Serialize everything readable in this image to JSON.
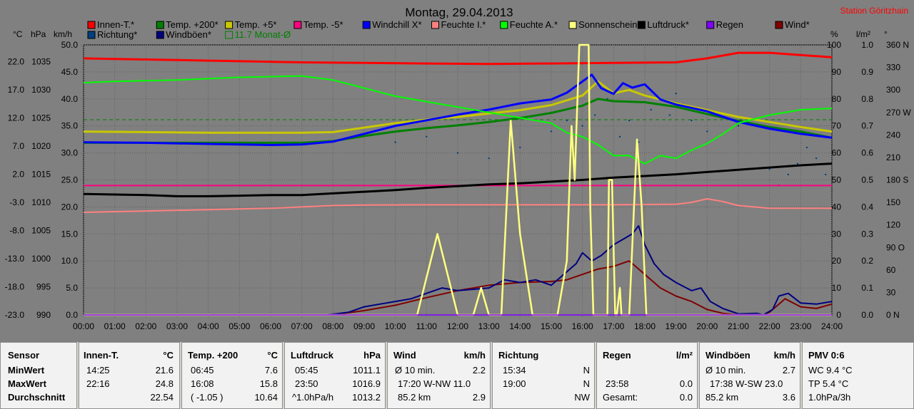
{
  "chart_data": {
    "type": "line",
    "title": "Montag, 29.04.2013",
    "station": "Station Göritzhain",
    "axis_units": {
      "temp": "°C",
      "pressure": "hPa",
      "speed": "km/h",
      "percent": "%",
      "rain": "l/m²",
      "direction": "°"
    },
    "x_ticks": [
      "00:00",
      "01:00",
      "02:00",
      "03:00",
      "04:00",
      "05:00",
      "06:00",
      "07:00",
      "08:00",
      "09:00",
      "10:00",
      "11:00",
      "12:00",
      "13:00",
      "14:00",
      "15:00",
      "16:00",
      "17:00",
      "18:00",
      "19:00",
      "20:00",
      "21:00",
      "22:00",
      "23:00",
      "24:00"
    ],
    "temp_ticks": [
      "22.0",
      "17.0",
      "12.0",
      "7.0",
      "2.0",
      "-3.0",
      "-8.0",
      "-13.0",
      "-18.0",
      "-23.0"
    ],
    "temp_range": [
      -23,
      25
    ],
    "pressure_ticks": [
      "1035",
      "1030",
      "1025",
      "1020",
      "1015",
      "1010",
      "1005",
      "1000",
      "995",
      "990"
    ],
    "speed_ticks": [
      "50.0",
      "45.0",
      "40.0",
      "35.0",
      "30.0",
      "25.0",
      "20.0",
      "15.0",
      "10.0",
      "5.0",
      "0.0"
    ],
    "percent_ticks": [
      "100",
      "90",
      "80",
      "70",
      "60",
      "50",
      "40",
      "30",
      "20",
      "10",
      "0"
    ],
    "rain_ticks": [
      "1.0",
      "0.9",
      "0.8",
      "0.7",
      "0.6",
      "0.5",
      "0.4",
      "0.3",
      "0.2",
      "0.1",
      "0.0"
    ],
    "direction_ticks": [
      "360 N",
      "330",
      "300",
      "270 W",
      "240",
      "210",
      "180 S",
      "150",
      "120",
      "90 O",
      "60",
      "30",
      "0 N"
    ],
    "legend": [
      {
        "name": "Innen-T.*",
        "color": "#ff0000"
      },
      {
        "name": "Temp. +200*",
        "color": "#008000"
      },
      {
        "name": "Temp. +5*",
        "color": "#c8c800"
      },
      {
        "name": "Temp. -5*",
        "color": "#ff0080"
      },
      {
        "name": "Windchill X*",
        "color": "#0000ff"
      },
      {
        "name": "Feuchte I.*",
        "color": "#ff8080"
      },
      {
        "name": "Feuchte A.*",
        "color": "#00ff00"
      },
      {
        "name": "Sonnenschein",
        "color": "#ffff80"
      },
      {
        "name": "Luftdruck*",
        "color": "#000000"
      },
      {
        "name": "Regen",
        "color": "#8000ff"
      },
      {
        "name": "Wind*",
        "color": "#800000"
      },
      {
        "name": "Richtung*",
        "color": "#004080"
      },
      {
        "name": "Windböen*",
        "color": "#000080"
      },
      {
        "name": "11.7 Monat-Ø",
        "color": "#008000"
      }
    ],
    "month_avg_temp": 11.7,
    "series": [
      {
        "name": "Innen-T.*",
        "axis": "temp",
        "color": "#ff0000",
        "x": [
          0,
          1,
          3,
          5,
          7,
          9,
          11,
          13,
          15,
          17,
          19,
          20,
          21,
          22,
          23,
          24
        ],
        "y": [
          22.6,
          22.5,
          22.3,
          22.1,
          21.9,
          21.8,
          21.7,
          21.6,
          21.7,
          21.8,
          21.9,
          22.6,
          23.6,
          23.6,
          23.2,
          22.8
        ]
      },
      {
        "name": "Temp. +200*",
        "axis": "temp",
        "color": "#008000",
        "x": [
          0,
          2,
          4,
          6,
          7,
          8,
          9,
          10,
          11,
          12,
          13,
          14,
          15,
          16,
          16.5,
          17,
          18,
          19,
          20,
          21,
          22,
          23,
          24
        ],
        "y": [
          7.6,
          7.6,
          7.6,
          7.6,
          7.6,
          7.9,
          8.8,
          9.6,
          10.2,
          10.7,
          11.3,
          12.0,
          12.9,
          14.2,
          15.4,
          15.0,
          14.8,
          14.0,
          12.7,
          11.5,
          10.4,
          9.6,
          8.5
        ]
      },
      {
        "name": "Temp. +5*",
        "axis": "temp",
        "color": "#c8c800",
        "x": [
          0,
          2,
          4,
          6,
          7,
          8,
          9,
          10,
          11,
          12,
          13,
          14,
          15,
          16,
          16.5,
          17,
          17.5,
          18,
          19,
          20,
          21,
          22,
          23,
          24
        ],
        "y": [
          9.6,
          9.5,
          9.4,
          9.4,
          9.4,
          9.5,
          10.3,
          11.1,
          11.7,
          12.2,
          12.8,
          13.4,
          14.3,
          16.0,
          18.5,
          16.4,
          17.0,
          16.0,
          14.6,
          13.4,
          12.2,
          11.3,
          10.4,
          9.6
        ]
      },
      {
        "name": "Temp. -5*",
        "axis": "temp",
        "color": "#ff0080",
        "x": [
          0,
          24
        ],
        "y": [
          0.0,
          0.0
        ]
      },
      {
        "name": "Windchill X*",
        "axis": "temp",
        "color": "#0000ff",
        "x": [
          0,
          2,
          4,
          6,
          7,
          8,
          9,
          10,
          11,
          12,
          13,
          14,
          15,
          15.5,
          16,
          16.3,
          16.6,
          17,
          17.3,
          17.6,
          18,
          18.5,
          19,
          20,
          21,
          22,
          23,
          24
        ],
        "y": [
          7.7,
          7.6,
          7.4,
          7.2,
          7.3,
          7.8,
          9.2,
          10.6,
          11.6,
          12.6,
          13.5,
          14.6,
          15.3,
          16.5,
          18.5,
          19.7,
          17.3,
          16.3,
          18.2,
          17.4,
          18.0,
          15.3,
          14.4,
          13.2,
          11.3,
          10.1,
          9.2,
          8.5
        ]
      },
      {
        "name": "Feuchte I.*",
        "axis": "percent",
        "color": "#ff8080",
        "x": [
          0,
          2,
          4,
          6,
          7,
          8,
          9,
          11,
          13,
          15,
          17,
          19,
          19.5,
          20,
          20.5,
          21,
          22,
          23,
          24
        ],
        "y": [
          38,
          38.5,
          39,
          39.5,
          40,
          40.5,
          40.7,
          40.8,
          40.8,
          40.8,
          40.8,
          41,
          41.7,
          43,
          42,
          40.5,
          39.5,
          39.5,
          39.5
        ]
      },
      {
        "name": "Feuchte A.*",
        "axis": "percent",
        "color": "#00ff00",
        "x": [
          0,
          1,
          3,
          5,
          7,
          8,
          9,
          10,
          11,
          12,
          13,
          14,
          15,
          15.5,
          16,
          16.5,
          17,
          17.5,
          18,
          18.5,
          19,
          19.5,
          20,
          20.5,
          21,
          22,
          23,
          24
        ],
        "y": [
          86,
          86.5,
          87,
          88,
          88.5,
          87,
          84,
          81,
          79,
          77,
          75,
          73,
          71,
          67.5,
          66,
          63,
          59,
          59,
          56,
          59,
          58,
          61,
          63.5,
          67,
          71,
          74,
          76,
          76.5
        ]
      },
      {
        "name": "Luftdruck*",
        "axis": "pressure",
        "color": "#000000",
        "x": [
          0,
          1,
          2,
          3,
          4,
          5,
          6,
          7,
          8,
          9,
          10,
          11,
          12,
          13,
          14,
          15,
          16,
          17,
          18,
          19,
          20,
          21,
          22,
          23,
          24
        ],
        "y": [
          1011.5,
          1011.4,
          1011.3,
          1011.1,
          1011.1,
          1011.2,
          1011.3,
          1011.3,
          1011.6,
          1011.9,
          1012.2,
          1012.6,
          1012.9,
          1013.2,
          1013.4,
          1013.7,
          1014.0,
          1014.4,
          1014.7,
          1015.0,
          1015.4,
          1015.8,
          1016.2,
          1016.6,
          1016.9
        ]
      },
      {
        "name": "Wind*",
        "axis": "speed",
        "color": "#800000",
        "x": [
          0,
          8,
          9,
          10,
          11,
          12,
          13,
          14,
          15,
          15.5,
          16,
          16.5,
          17,
          17.5,
          18,
          18.5,
          19,
          19.5,
          20,
          20.5,
          21,
          21.8,
          22,
          22.5,
          23,
          23.5,
          24
        ],
        "y": [
          0,
          0,
          0.8,
          1.8,
          3.2,
          4.5,
          5.5,
          6,
          6.2,
          6.5,
          7.5,
          8.5,
          9,
          10,
          7.5,
          5,
          3.5,
          2.5,
          1,
          0.3,
          0,
          0,
          0.5,
          3,
          1.5,
          1.2,
          2
        ]
      },
      {
        "name": "Windböen*",
        "axis": "speed",
        "color": "#000080",
        "x": [
          0,
          7.8,
          8.5,
          9,
          9.5,
          10,
          10.5,
          11,
          11.5,
          12,
          13,
          13.5,
          14,
          14.5,
          15,
          15.5,
          15.8,
          16,
          16.3,
          16.6,
          17,
          17.3,
          17.6,
          17.8,
          18,
          18.3,
          18.6,
          19,
          19.5,
          19.8,
          20.1,
          20.5,
          21,
          21.6,
          21.8,
          22.1,
          22.3,
          22.6,
          23,
          23.5,
          24
        ],
        "y": [
          0,
          0,
          0.5,
          1.5,
          2,
          2.5,
          3,
          4,
          5,
          4.5,
          5,
          6.5,
          6,
          6.5,
          5.5,
          8,
          9.5,
          11.5,
          10,
          11,
          13,
          14,
          15,
          16.5,
          13,
          9.5,
          7.5,
          6,
          4.5,
          5,
          2.5,
          1.2,
          0.2,
          0.3,
          0,
          1,
          3.5,
          4,
          2.2,
          2,
          2.5
        ]
      },
      {
        "name": "Sonnenschein",
        "axis": "percent",
        "color": "#ffff80",
        "x": [
          0,
          10.7,
          11.35,
          12,
          12.5,
          12.75,
          13,
          13.4,
          13.7,
          14,
          14.4,
          15.2,
          15.5,
          15.65,
          15.75,
          15.9,
          16.2,
          16.25,
          16.35,
          16.8,
          16.85,
          16.95,
          17.05,
          17.1,
          17.2,
          17.25,
          17.3,
          17.5,
          17.75,
          17.9,
          18.05,
          24
        ],
        "y": [
          0,
          0,
          30,
          0,
          0,
          10,
          0,
          0,
          72,
          30,
          0,
          0,
          20,
          70,
          50,
          100,
          100,
          40,
          0,
          0,
          50,
          50,
          0,
          0,
          10,
          0,
          0,
          0,
          65,
          40,
          0,
          0
        ]
      },
      {
        "name": "Regen",
        "axis": "rain",
        "color": "#8000ff",
        "x": [
          0,
          24
        ],
        "y": [
          0,
          0
        ]
      }
    ]
  },
  "stats": {
    "sensor": {
      "header": "Sensor",
      "rows": [
        "MinWert",
        "MaxWert",
        "Durchschnitt"
      ]
    },
    "innen": {
      "header": "Innen-T.",
      "unit": "°C",
      "rows": [
        [
          "14:25",
          "21.6"
        ],
        [
          "22:16",
          "24.8"
        ],
        [
          "",
          "22.54"
        ]
      ]
    },
    "temp200": {
      "header": "Temp. +200",
      "unit": "°C",
      "rows": [
        [
          "06:45",
          "7.6"
        ],
        [
          "16:08",
          "15.8"
        ],
        [
          "( -1.05 )",
          "10.64"
        ]
      ]
    },
    "luftdruck": {
      "header": "Luftdruck",
      "unit": "hPa",
      "rows": [
        [
          "05:45",
          "1011.1"
        ],
        [
          "23:50",
          "1016.9"
        ],
        [
          "^1.0hPa/h",
          "1013.2"
        ]
      ]
    },
    "wind": {
      "header": "Wind",
      "unit": "km/h",
      "rows": [
        [
          "Ø 10 min.",
          "2.2"
        ],
        [
          "17:20  W-NW 11.0",
          ""
        ],
        [
          "85.2 km",
          "2.9"
        ]
      ]
    },
    "richtung": {
      "header": "Richtung",
      "unit": "",
      "rows": [
        [
          "15:34",
          "N"
        ],
        [
          "19:00",
          "N"
        ],
        [
          "",
          "NW"
        ]
      ]
    },
    "regen": {
      "header": "Regen",
      "unit": "l/m²",
      "rows": [
        [
          "",
          ""
        ],
        [
          "23:58",
          "0.0"
        ],
        [
          "Gesamt:",
          "0.0"
        ]
      ]
    },
    "windboen": {
      "header": "Windböen",
      "unit": "km/h",
      "rows": [
        [
          "Ø 10 min.",
          "2.7"
        ],
        [
          "17:38  W-SW 23.0",
          ""
        ],
        [
          "85.2 km",
          "3.6"
        ]
      ]
    },
    "pmv": {
      "header": "PMV 0:6",
      "rows": [
        "WC 9.4 °C",
        "TP 5.4 °C",
        "1.0hPa/3h"
      ]
    }
  }
}
